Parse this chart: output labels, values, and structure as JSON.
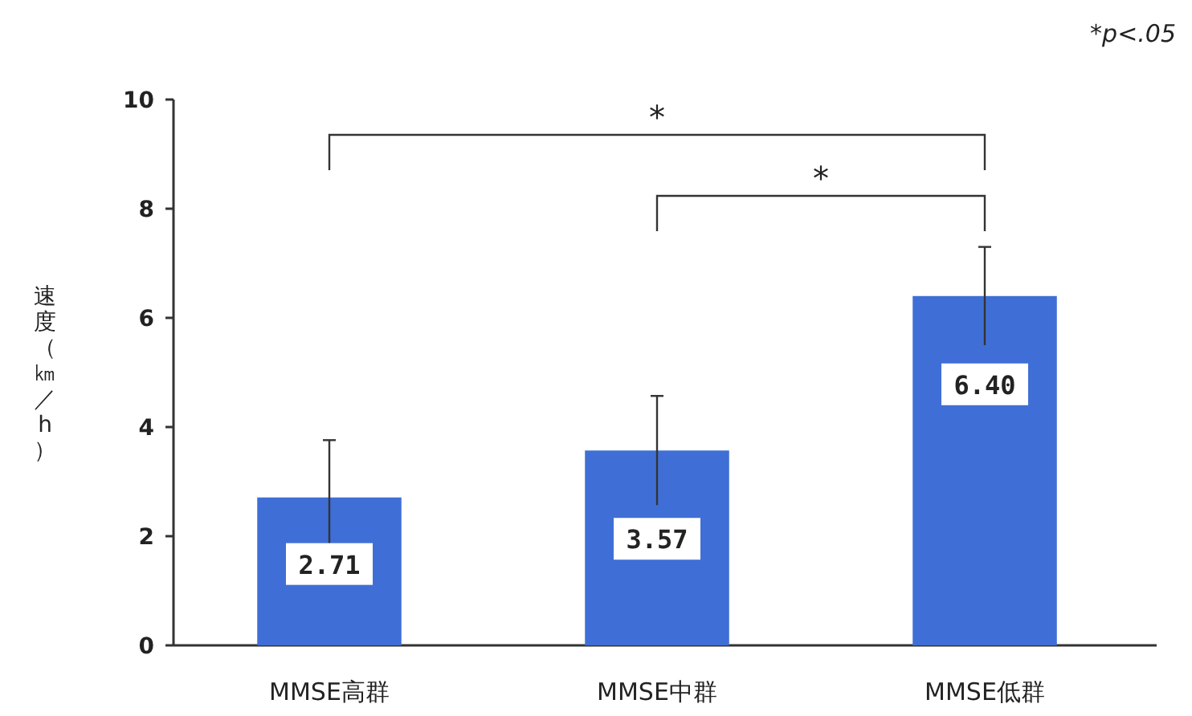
{
  "chart_data": {
    "type": "bar",
    "ylabel": "速度（㎞／h）",
    "categories": [
      "MMSE高群",
      "MMSE中群",
      "MMSE低群"
    ],
    "values": [
      2.71,
      3.57,
      6.4
    ],
    "value_labels": [
      "2.71",
      "3.57",
      "6.40"
    ],
    "errors": [
      1.05,
      1.0,
      0.9
    ],
    "color": "#3f6fd6",
    "ylim": [
      0,
      10
    ],
    "yticks": [
      0,
      2,
      4,
      6,
      8,
      10
    ],
    "annotations": [
      "*p<.05",
      "*",
      "*"
    ],
    "grid": false
  }
}
